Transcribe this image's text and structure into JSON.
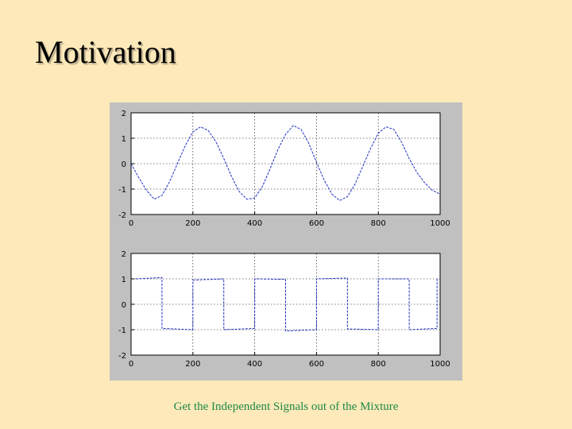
{
  "slide": {
    "title": "Motivation",
    "caption": "Get the Independent Signals out of the Mixture"
  },
  "colors": {
    "background": "#fde9b9",
    "figure_frame": "#c0c0c0",
    "plot_area": "#ffffff",
    "line": "#1f2fbf",
    "caption": "#1f8a4a"
  },
  "chart_data": [
    {
      "type": "line",
      "title": "",
      "xlabel": "",
      "ylabel": "",
      "xlim": [
        0,
        1000
      ],
      "ylim": [
        -2,
        2
      ],
      "x_ticks": [
        0,
        200,
        400,
        600,
        800,
        1000
      ],
      "y_ticks": [
        2,
        1,
        0,
        -1,
        -2
      ],
      "x_tick_labels": [
        "0",
        "200",
        "400",
        "600",
        "800",
        "1000"
      ],
      "y_tick_labels": [
        "2",
        "1",
        "0",
        "-1",
        "-2"
      ],
      "grid": true,
      "line_style": "dashed",
      "series": [
        {
          "x": [
            0,
            25,
            50,
            75,
            100,
            125,
            150,
            175,
            200,
            225,
            250,
            275,
            300,
            325,
            350,
            375,
            400,
            425,
            450,
            475,
            500,
            525,
            550,
            575,
            600,
            625,
            650,
            675,
            700,
            725,
            750,
            775,
            800,
            825,
            850,
            875,
            900,
            925,
            950,
            975,
            1000
          ],
          "values": [
            0,
            -0.55,
            -1.05,
            -1.4,
            -1.25,
            -0.7,
            0,
            0.7,
            1.25,
            1.45,
            1.3,
            0.85,
            0.2,
            -0.5,
            -1.1,
            -1.4,
            -1.35,
            -0.9,
            -0.2,
            0.55,
            1.15,
            1.5,
            1.35,
            0.8,
            0.05,
            -0.65,
            -1.2,
            -1.45,
            -1.3,
            -0.8,
            -0.1,
            0.6,
            1.2,
            1.45,
            1.35,
            0.85,
            0.2,
            -0.35,
            -0.75,
            -1.05,
            -1.2
          ]
        }
      ]
    },
    {
      "type": "line",
      "title": "",
      "xlabel": "",
      "ylabel": "",
      "xlim": [
        0,
        1000
      ],
      "ylim": [
        -2,
        2
      ],
      "x_ticks": [
        0,
        200,
        400,
        600,
        800,
        1000
      ],
      "y_ticks": [
        2,
        1,
        0,
        -1,
        -2
      ],
      "x_tick_labels": [
        "0",
        "200",
        "400",
        "600",
        "800",
        "1000"
      ],
      "y_tick_labels": [
        "2",
        "1",
        "0",
        "-1",
        "-2"
      ],
      "grid": true,
      "line_style": "dashed",
      "series": [
        {
          "x": [
            15,
            100,
            100.1,
            200,
            200.1,
            300,
            300.1,
            400,
            400.1,
            500,
            500.1,
            600,
            600.1,
            700,
            700.1,
            800,
            800.1,
            900,
            900.1,
            990,
            990.1
          ],
          "values": [
            1.0,
            1.05,
            -0.95,
            -1.0,
            0.95,
            1.0,
            -1.0,
            -0.95,
            1.0,
            0.98,
            -1.05,
            -1.0,
            1.0,
            1.03,
            -0.97,
            -1.0,
            1.0,
            1.0,
            -1.0,
            -0.95,
            1.05
          ]
        }
      ]
    }
  ]
}
